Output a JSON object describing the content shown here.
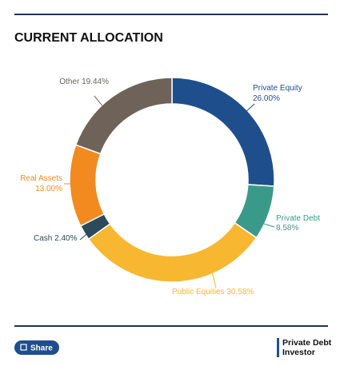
{
  "chart_data": {
    "type": "donut",
    "title": "CURRENT ALLOCATION",
    "categories": [
      "Private Equity",
      "Private Debt",
      "Public Equities",
      "Cash",
      "Real Assets",
      "Other"
    ],
    "values": [
      26.0,
      8.58,
      30.58,
      2.4,
      13.0,
      19.44
    ],
    "value_labels": [
      "26.00%",
      "8.58%",
      "30.58%",
      "2.40%",
      "13.00%",
      "19.44%"
    ],
    "colors": [
      "#1f4e8c",
      "#3a9a8a",
      "#f7b731",
      "#2c4a5a",
      "#f28a1f",
      "#6e6259"
    ]
  },
  "footer": {
    "share": "Share",
    "logo": {
      "line1": "Private Debt",
      "line2": "Investor"
    }
  }
}
